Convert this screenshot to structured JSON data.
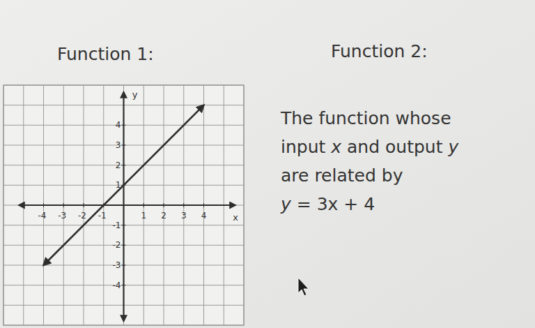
{
  "chart_data": {
    "type": "line",
    "title": "Function 1:",
    "x_label": "x",
    "y_label": "y",
    "x": [
      -4,
      4
    ],
    "values": [
      -3,
      5
    ],
    "color": "#2e2e2e",
    "xlim": [
      -6,
      6
    ],
    "ylim": [
      -6,
      6
    ],
    "xticks": [
      -4,
      -3,
      -2,
      -1,
      1,
      2,
      3,
      4
    ],
    "yticks": [
      -4,
      -3,
      -2,
      -1,
      1,
      2,
      3,
      4
    ],
    "grid": true
  },
  "function_2": {
    "title": "Function 2:",
    "lines": [
      "The function whose",
      "input x and output y",
      "are related by",
      "y = 3x + 4"
    ]
  }
}
